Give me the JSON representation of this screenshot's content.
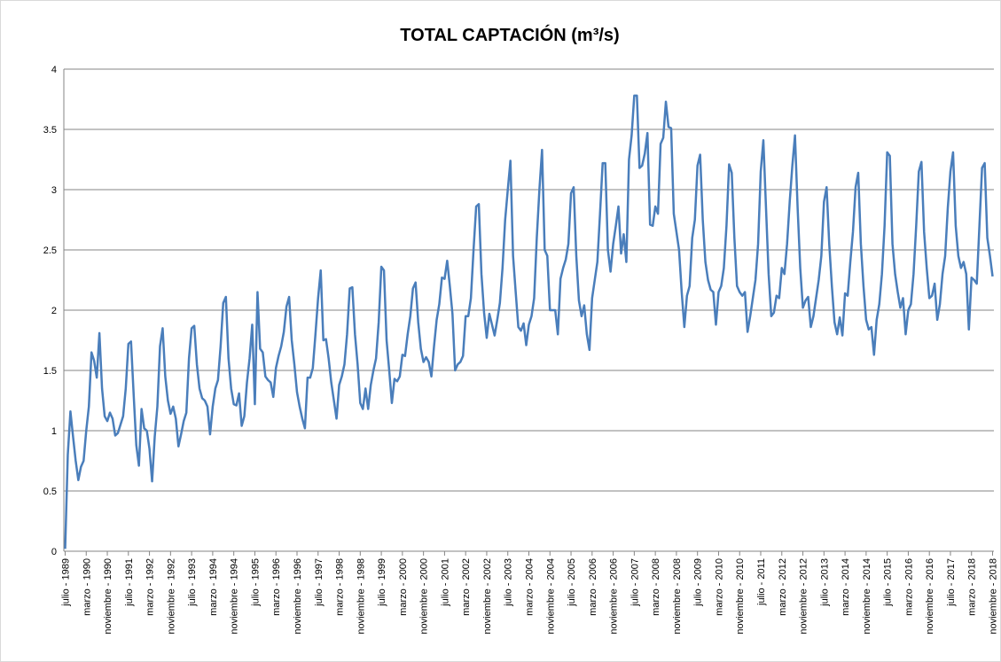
{
  "chart_data": {
    "type": "line",
    "title": "TOTAL CAPTACIÓN (m³/s)",
    "categories": [
      "julio - 1989",
      null,
      null,
      null,
      null,
      null,
      null,
      null,
      "marzo - 1990",
      null,
      null,
      null,
      null,
      null,
      null,
      null,
      "noviembre - 1990",
      null,
      null,
      null,
      null,
      null,
      null,
      null,
      "julio - 1991",
      null,
      null,
      null,
      null,
      null,
      null,
      null,
      "marzo - 1992",
      null,
      null,
      null,
      null,
      null,
      null,
      null,
      "noviembre - 1992",
      null,
      null,
      null,
      null,
      null,
      null,
      null,
      "julio - 1993",
      null,
      null,
      null,
      null,
      null,
      null,
      null,
      "marzo - 1994",
      null,
      null,
      null,
      null,
      null,
      null,
      null,
      "noviembre - 1994",
      null,
      null,
      null,
      null,
      null,
      null,
      null,
      "julio - 1995",
      null,
      null,
      null,
      null,
      null,
      null,
      null,
      "marzo - 1996",
      null,
      null,
      null,
      null,
      null,
      null,
      null,
      "noviembre - 1996",
      null,
      null,
      null,
      null,
      null,
      null,
      null,
      "julio - 1997",
      null,
      null,
      null,
      null,
      null,
      null,
      null,
      "marzo - 1998",
      null,
      null,
      null,
      null,
      null,
      null,
      null,
      "noviembre - 1998",
      null,
      null,
      null,
      null,
      null,
      null,
      null,
      "julio - 1999",
      null,
      null,
      null,
      null,
      null,
      null,
      null,
      "marzo - 2000",
      null,
      null,
      null,
      null,
      null,
      null,
      null,
      "noviembre - 2000",
      null,
      null,
      null,
      null,
      null,
      null,
      null,
      "julio - 2001",
      null,
      null,
      null,
      null,
      null,
      null,
      null,
      "marzo - 2002",
      null,
      null,
      null,
      null,
      null,
      null,
      null,
      "noviembre - 2002",
      null,
      null,
      null,
      null,
      null,
      null,
      null,
      "julio - 2003",
      null,
      null,
      null,
      null,
      null,
      null,
      null,
      "marzo - 2004",
      null,
      null,
      null,
      null,
      null,
      null,
      null,
      "noviembre - 2004",
      null,
      null,
      null,
      null,
      null,
      null,
      null,
      "julio - 2005",
      null,
      null,
      null,
      null,
      null,
      null,
      null,
      "marzo - 2006",
      null,
      null,
      null,
      null,
      null,
      null,
      null,
      "noviembre - 2006",
      null,
      null,
      null,
      null,
      null,
      null,
      null,
      "julio - 2007",
      null,
      null,
      null,
      null,
      null,
      null,
      null,
      "marzo - 2008",
      null,
      null,
      null,
      null,
      null,
      null,
      null,
      "noviembre - 2008",
      null,
      null,
      null,
      null,
      null,
      null,
      null,
      "julio - 2009",
      null,
      null,
      null,
      null,
      null,
      null,
      null,
      "marzo - 2010",
      null,
      null,
      null,
      null,
      null,
      null,
      null,
      "noviembre - 2010",
      null,
      null,
      null,
      null,
      null,
      null,
      null,
      "julio - 2011",
      null,
      null,
      null,
      null,
      null,
      null,
      null,
      "marzo - 2012",
      null,
      null,
      null,
      null,
      null,
      null,
      null,
      "noviembre - 2012",
      null,
      null,
      null,
      null,
      null,
      null,
      null,
      "julio - 2013",
      null,
      null,
      null,
      null,
      null,
      null,
      null,
      "marzo - 2014",
      null,
      null,
      null,
      null,
      null,
      null,
      null,
      "noviembre - 2014",
      null,
      null,
      null,
      null,
      null,
      null,
      null,
      "julio - 2015",
      null,
      null,
      null,
      null,
      null,
      null,
      null,
      "marzo - 2016",
      null,
      null,
      null,
      null,
      null,
      null,
      null,
      "noviembre - 2016",
      null,
      null,
      null,
      null,
      null,
      null,
      null,
      "julio - 2017",
      null,
      null,
      null,
      null,
      null,
      null,
      null,
      "marzo - 2018",
      null,
      null,
      null,
      null,
      null,
      null,
      null,
      "noviembre - 2018"
    ],
    "series": [
      {
        "color": "#4a7ebb",
        "values": [
          0.02,
          0.8,
          1.16,
          0.95,
          0.75,
          0.59,
          0.7,
          0.75,
          1.0,
          1.2,
          1.65,
          1.58,
          1.44,
          1.81,
          1.35,
          1.12,
          1.08,
          1.15,
          1.1,
          0.96,
          0.98,
          1.05,
          1.12,
          1.35,
          1.72,
          1.74,
          1.3,
          0.88,
          0.71,
          1.18,
          1.02,
          1.0,
          0.85,
          0.58,
          0.95,
          1.2,
          1.7,
          1.85,
          1.45,
          1.25,
          1.14,
          1.2,
          1.1,
          0.87,
          0.97,
          1.08,
          1.15,
          1.6,
          1.85,
          1.87,
          1.55,
          1.35,
          1.27,
          1.25,
          1.2,
          0.97,
          1.2,
          1.35,
          1.42,
          1.7,
          2.06,
          2.11,
          1.6,
          1.35,
          1.22,
          1.21,
          1.31,
          1.04,
          1.12,
          1.4,
          1.6,
          1.88,
          1.22,
          2.15,
          1.68,
          1.65,
          1.45,
          1.42,
          1.4,
          1.28,
          1.52,
          1.62,
          1.7,
          1.82,
          2.03,
          2.11,
          1.75,
          1.55,
          1.32,
          1.2,
          1.1,
          1.02,
          1.44,
          1.44,
          1.52,
          1.8,
          2.1,
          2.33,
          1.75,
          1.76,
          1.6,
          1.4,
          1.25,
          1.1,
          1.38,
          1.45,
          1.55,
          1.8,
          2.18,
          2.19,
          1.8,
          1.55,
          1.23,
          1.18,
          1.35,
          1.18,
          1.38,
          1.5,
          1.6,
          1.9,
          2.36,
          2.33,
          1.75,
          1.5,
          1.23,
          1.43,
          1.41,
          1.45,
          1.63,
          1.62,
          1.8,
          1.95,
          2.18,
          2.23,
          1.9,
          1.68,
          1.57,
          1.61,
          1.57,
          1.45,
          1.7,
          1.92,
          2.05,
          2.27,
          2.26,
          2.41,
          2.2,
          1.97,
          1.5,
          1.55,
          1.57,
          1.62,
          1.95,
          1.95,
          2.1,
          2.5,
          2.86,
          2.88,
          2.3,
          1.98,
          1.77,
          1.97,
          1.88,
          1.79,
          1.92,
          2.06,
          2.35,
          2.75,
          3.0,
          3.24,
          2.45,
          2.15,
          1.86,
          1.83,
          1.89,
          1.71,
          1.88,
          1.95,
          2.1,
          2.6,
          3.0,
          3.33,
          2.5,
          2.45,
          2.0,
          2.0,
          2.0,
          1.8,
          2.26,
          2.35,
          2.42,
          2.55,
          2.97,
          3.02,
          2.45,
          2.08,
          1.95,
          2.04,
          1.8,
          1.67,
          2.1,
          2.25,
          2.4,
          2.8,
          3.22,
          3.22,
          2.5,
          2.32,
          2.55,
          2.7,
          2.86,
          2.47,
          2.63,
          2.4,
          3.25,
          3.45,
          3.78,
          3.78,
          3.18,
          3.2,
          3.3,
          3.47,
          2.71,
          2.7,
          2.86,
          2.8,
          3.38,
          3.43,
          3.73,
          3.52,
          3.51,
          2.8,
          2.65,
          2.5,
          2.15,
          1.86,
          2.12,
          2.2,
          2.6,
          2.75,
          3.2,
          3.29,
          2.75,
          2.4,
          2.25,
          2.17,
          2.15,
          1.88,
          2.15,
          2.2,
          2.35,
          2.7,
          3.21,
          3.14,
          2.6,
          2.2,
          2.15,
          2.12,
          2.15,
          1.82,
          1.95,
          2.1,
          2.25,
          2.55,
          3.15,
          3.41,
          2.85,
          2.3,
          1.95,
          1.98,
          2.12,
          2.1,
          2.35,
          2.3,
          2.55,
          2.9,
          3.2,
          3.45,
          2.85,
          2.35,
          2.02,
          2.08,
          2.11,
          1.86,
          1.95,
          2.1,
          2.25,
          2.45,
          2.9,
          3.02,
          2.55,
          2.2,
          1.9,
          1.8,
          1.94,
          1.79,
          2.14,
          2.12,
          2.4,
          2.65,
          3.02,
          3.14,
          2.55,
          2.2,
          1.92,
          1.84,
          1.86,
          1.63,
          1.92,
          2.05,
          2.3,
          2.7,
          3.31,
          3.28,
          2.55,
          2.3,
          2.15,
          2.02,
          2.1,
          1.8,
          2.0,
          2.05,
          2.3,
          2.7,
          3.15,
          3.23,
          2.65,
          2.35,
          2.1,
          2.12,
          2.22,
          1.92,
          2.05,
          2.3,
          2.45,
          2.85,
          3.15,
          3.31,
          2.7,
          2.45,
          2.35,
          2.4,
          2.3,
          1.84,
          2.27,
          2.25,
          2.22,
          2.7,
          3.18,
          3.22,
          2.6,
          2.45,
          2.28
        ]
      }
    ],
    "ylim": [
      0,
      4
    ],
    "yticks": [
      0,
      0.5,
      1,
      1.5,
      2,
      2.5,
      3,
      3.5,
      4
    ],
    "grid": true
  }
}
